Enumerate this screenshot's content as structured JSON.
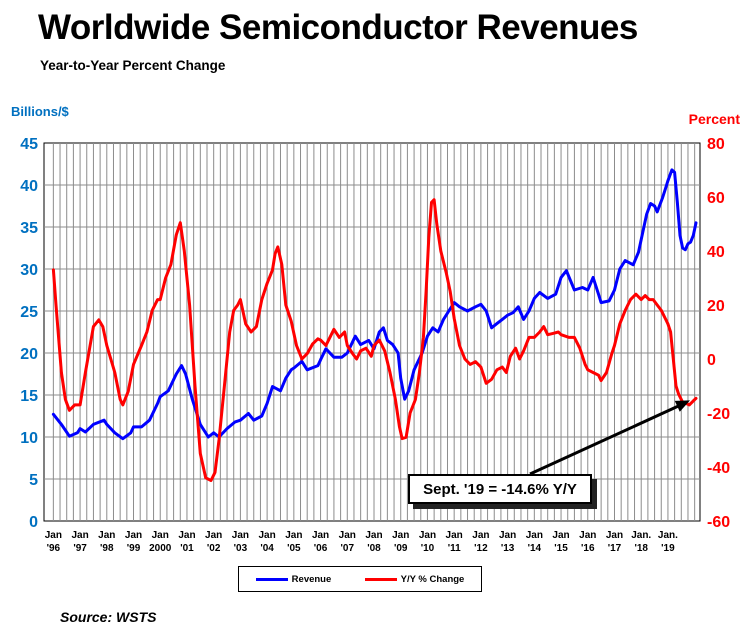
{
  "title": "Worldwide Semiconductor Revenues",
  "subtitle": "Year-to-Year Percent Change",
  "source": "Source: WSTS",
  "colors": {
    "revenue": "#0000ff",
    "yoy": "#ff0000",
    "left_axis": "#0070c0",
    "right_axis": "#ff0000",
    "grid": "#8c8c8c"
  },
  "legend": {
    "revenue": "Revenue",
    "yoy": "Y/Y % Change"
  },
  "callout": "Sept. '19 = -14.6% Y/Y",
  "chart_data": {
    "type": "line",
    "left_axis": {
      "label": "Billions/$",
      "ylim": [
        0,
        45
      ],
      "ticks": [
        0,
        5,
        10,
        15,
        20,
        25,
        30,
        35,
        40,
        45
      ]
    },
    "right_axis": {
      "label": "Percent",
      "ylim": [
        -60,
        80
      ],
      "ticks": [
        -60,
        -40,
        -20,
        0,
        20,
        40,
        60,
        80
      ]
    },
    "x_ticks": [
      [
        "Jan",
        "'96"
      ],
      [
        "Jan",
        "'97"
      ],
      [
        "Jan",
        "'98"
      ],
      [
        "Jan",
        "'99"
      ],
      [
        "Jan",
        "2000"
      ],
      [
        "Jan",
        "'01"
      ],
      [
        "Jan",
        "'02"
      ],
      [
        "Jan",
        "'03"
      ],
      [
        "Jan",
        "'04"
      ],
      [
        "Jan",
        "'05"
      ],
      [
        "Jan",
        "'06"
      ],
      [
        "Jan",
        "'07"
      ],
      [
        "Jan",
        "'08"
      ],
      [
        "Jan",
        "'09"
      ],
      [
        "Jan",
        "'10"
      ],
      [
        "Jan",
        "'11"
      ],
      [
        "Jan",
        "'12"
      ],
      [
        "Jan",
        "'13"
      ],
      [
        "Jan",
        "'14"
      ],
      [
        "Jan",
        "'15"
      ],
      [
        "Jan",
        "'16"
      ],
      [
        "Jan",
        "'17"
      ],
      [
        "Jan.",
        "'18"
      ],
      [
        "Jan.",
        "'19"
      ]
    ],
    "grid": true,
    "legend_position": "bottom",
    "series": [
      {
        "name": "Revenue",
        "axis": "left",
        "points": [
          [
            1996.0,
            12.7
          ],
          [
            1996.3,
            11.5
          ],
          [
            1996.6,
            10.1
          ],
          [
            1996.9,
            10.5
          ],
          [
            1997.0,
            11.0
          ],
          [
            1997.2,
            10.6
          ],
          [
            1997.5,
            11.5
          ],
          [
            1997.9,
            12.0
          ],
          [
            1998.0,
            11.5
          ],
          [
            1998.3,
            10.5
          ],
          [
            1998.6,
            9.8
          ],
          [
            1998.9,
            10.5
          ],
          [
            1999.0,
            11.2
          ],
          [
            1999.3,
            11.2
          ],
          [
            1999.6,
            12.0
          ],
          [
            1999.9,
            14.0
          ],
          [
            2000.0,
            14.8
          ],
          [
            2000.3,
            15.5
          ],
          [
            2000.6,
            17.5
          ],
          [
            2000.8,
            18.5
          ],
          [
            2000.95,
            17.5
          ],
          [
            2001.2,
            14.5
          ],
          [
            2001.5,
            11.5
          ],
          [
            2001.8,
            10.0
          ],
          [
            2002.0,
            10.5
          ],
          [
            2002.2,
            10.0
          ],
          [
            2002.5,
            11.0
          ],
          [
            2002.8,
            11.8
          ],
          [
            2003.0,
            12.0
          ],
          [
            2003.3,
            12.8
          ],
          [
            2003.5,
            12.0
          ],
          [
            2003.8,
            12.5
          ],
          [
            2004.0,
            14.0
          ],
          [
            2004.2,
            16.0
          ],
          [
            2004.5,
            15.5
          ],
          [
            2004.7,
            17.0
          ],
          [
            2004.9,
            18.0
          ],
          [
            2005.0,
            18.2
          ],
          [
            2005.3,
            19.0
          ],
          [
            2005.5,
            18.0
          ],
          [
            2005.9,
            18.5
          ],
          [
            2006.0,
            19.2
          ],
          [
            2006.2,
            20.5
          ],
          [
            2006.5,
            19.5
          ],
          [
            2006.8,
            19.5
          ],
          [
            2007.0,
            20.0
          ],
          [
            2007.3,
            22.0
          ],
          [
            2007.5,
            21.0
          ],
          [
            2007.8,
            21.5
          ],
          [
            2008.0,
            20.5
          ],
          [
            2008.2,
            22.5
          ],
          [
            2008.35,
            23.0
          ],
          [
            2008.5,
            21.5
          ],
          [
            2008.7,
            21.0
          ],
          [
            2008.9,
            20.0
          ],
          [
            2009.0,
            17.0
          ],
          [
            2009.15,
            14.5
          ],
          [
            2009.3,
            15.5
          ],
          [
            2009.5,
            18.0
          ],
          [
            2009.8,
            20.0
          ],
          [
            2010.0,
            22.0
          ],
          [
            2010.2,
            23.0
          ],
          [
            2010.4,
            22.5
          ],
          [
            2010.6,
            24.0
          ],
          [
            2010.8,
            25.0
          ],
          [
            2011.0,
            26.0
          ],
          [
            2011.2,
            25.5
          ],
          [
            2011.5,
            25.0
          ],
          [
            2011.8,
            25.5
          ],
          [
            2012.0,
            25.8
          ],
          [
            2012.2,
            25.0
          ],
          [
            2012.4,
            23.0
          ],
          [
            2012.6,
            23.5
          ],
          [
            2012.8,
            24.0
          ],
          [
            2013.0,
            24.5
          ],
          [
            2013.2,
            24.8
          ],
          [
            2013.4,
            25.5
          ],
          [
            2013.6,
            24.0
          ],
          [
            2013.8,
            25.0
          ],
          [
            2014.0,
            26.5
          ],
          [
            2014.2,
            27.2
          ],
          [
            2014.5,
            26.5
          ],
          [
            2014.8,
            27.0
          ],
          [
            2015.0,
            29.0
          ],
          [
            2015.2,
            29.8
          ],
          [
            2015.5,
            27.5
          ],
          [
            2015.8,
            27.8
          ],
          [
            2016.0,
            27.5
          ],
          [
            2016.2,
            29.0
          ],
          [
            2016.4,
            27.0
          ],
          [
            2016.5,
            26.0
          ],
          [
            2016.8,
            26.2
          ],
          [
            2017.0,
            27.5
          ],
          [
            2017.2,
            30.0
          ],
          [
            2017.4,
            31.0
          ],
          [
            2017.7,
            30.5
          ],
          [
            2017.9,
            32.0
          ],
          [
            2018.0,
            33.5
          ],
          [
            2018.2,
            36.5
          ],
          [
            2018.35,
            37.8
          ],
          [
            2018.5,
            37.5
          ],
          [
            2018.6,
            36.8
          ],
          [
            2018.8,
            38.5
          ],
          [
            2018.9,
            39.5
          ],
          [
            2019.0,
            40.5
          ],
          [
            2019.15,
            41.8
          ],
          [
            2019.25,
            41.5
          ],
          [
            2019.35,
            38.0
          ],
          [
            2019.45,
            34.0
          ],
          [
            2019.55,
            32.5
          ],
          [
            2019.65,
            32.3
          ],
          [
            2019.75,
            33.0
          ],
          [
            2019.85,
            33.2
          ],
          [
            2019.95,
            34.0
          ],
          [
            2020.05,
            35.5
          ]
        ]
      },
      {
        "name": "Y/Y % Change",
        "axis": "right",
        "points": [
          [
            1996.0,
            33.0
          ],
          [
            1996.1,
            20.0
          ],
          [
            1996.3,
            -5.0
          ],
          [
            1996.45,
            -15.0
          ],
          [
            1996.6,
            -19.0
          ],
          [
            1996.8,
            -17.0
          ],
          [
            1997.0,
            -17.0
          ],
          [
            1997.2,
            -5.0
          ],
          [
            1997.5,
            12.0
          ],
          [
            1997.7,
            14.5
          ],
          [
            1997.85,
            12.0
          ],
          [
            1998.0,
            5.0
          ],
          [
            1998.3,
            -5.0
          ],
          [
            1998.5,
            -15.0
          ],
          [
            1998.6,
            -17.0
          ],
          [
            1998.8,
            -12.0
          ],
          [
            1999.0,
            -2.0
          ],
          [
            1999.3,
            5.0
          ],
          [
            1999.5,
            10.0
          ],
          [
            1999.7,
            18.0
          ],
          [
            1999.9,
            22.0
          ],
          [
            2000.0,
            22.0
          ],
          [
            2000.2,
            30.0
          ],
          [
            2000.4,
            35.0
          ],
          [
            2000.6,
            46.0
          ],
          [
            2000.75,
            50.5
          ],
          [
            2000.9,
            40.0
          ],
          [
            2001.1,
            20.0
          ],
          [
            2001.3,
            -10.0
          ],
          [
            2001.5,
            -35.0
          ],
          [
            2001.7,
            -44.0
          ],
          [
            2001.9,
            -45.0
          ],
          [
            2002.05,
            -42.0
          ],
          [
            2002.2,
            -30.0
          ],
          [
            2002.4,
            -10.0
          ],
          [
            2002.6,
            10.0
          ],
          [
            2002.75,
            18.0
          ],
          [
            2002.9,
            20.0
          ],
          [
            2003.0,
            22.0
          ],
          [
            2003.2,
            13.0
          ],
          [
            2003.4,
            10.0
          ],
          [
            2003.6,
            12.0
          ],
          [
            2003.8,
            22.0
          ],
          [
            2004.0,
            28.0
          ],
          [
            2004.2,
            33.0
          ],
          [
            2004.3,
            39.0
          ],
          [
            2004.4,
            41.5
          ],
          [
            2004.55,
            35.0
          ],
          [
            2004.7,
            20.0
          ],
          [
            2004.9,
            14.0
          ],
          [
            2005.1,
            5.0
          ],
          [
            2005.3,
            0.0
          ],
          [
            2005.5,
            2.0
          ],
          [
            2005.7,
            5.5
          ],
          [
            2005.9,
            7.5
          ],
          [
            2006.0,
            7.0
          ],
          [
            2006.2,
            5.0
          ],
          [
            2006.35,
            8.0
          ],
          [
            2006.5,
            11.0
          ],
          [
            2006.7,
            8.0
          ],
          [
            2006.9,
            10.0
          ],
          [
            2007.0,
            5.0
          ],
          [
            2007.2,
            2.0
          ],
          [
            2007.35,
            0.0
          ],
          [
            2007.5,
            3.0
          ],
          [
            2007.7,
            4.0
          ],
          [
            2007.9,
            1.0
          ],
          [
            2008.0,
            5.0
          ],
          [
            2008.2,
            7.0
          ],
          [
            2008.4,
            3.0
          ],
          [
            2008.6,
            -5.0
          ],
          [
            2008.8,
            -15.0
          ],
          [
            2008.95,
            -25.0
          ],
          [
            2009.05,
            -29.5
          ],
          [
            2009.2,
            -29.0
          ],
          [
            2009.35,
            -20.0
          ],
          [
            2009.55,
            -15.0
          ],
          [
            2009.7,
            -5.0
          ],
          [
            2009.85,
            8.0
          ],
          [
            2009.95,
            25.0
          ],
          [
            2010.05,
            45.0
          ],
          [
            2010.15,
            58.0
          ],
          [
            2010.25,
            59.0
          ],
          [
            2010.35,
            50.0
          ],
          [
            2010.5,
            40.0
          ],
          [
            2010.7,
            32.0
          ],
          [
            2010.85,
            25.0
          ],
          [
            2011.0,
            15.0
          ],
          [
            2011.2,
            5.0
          ],
          [
            2011.4,
            0.0
          ],
          [
            2011.6,
            -2.0
          ],
          [
            2011.8,
            -1.0
          ],
          [
            2012.0,
            -3.0
          ],
          [
            2012.2,
            -9.0
          ],
          [
            2012.4,
            -7.5
          ],
          [
            2012.6,
            -4.0
          ],
          [
            2012.8,
            -3.0
          ],
          [
            2012.95,
            -5.0
          ],
          [
            2013.1,
            1.0
          ],
          [
            2013.3,
            4.0
          ],
          [
            2013.45,
            0.0
          ],
          [
            2013.6,
            3.0
          ],
          [
            2013.8,
            8.0
          ],
          [
            2014.0,
            8.0
          ],
          [
            2014.2,
            10.0
          ],
          [
            2014.35,
            12.0
          ],
          [
            2014.5,
            9.0
          ],
          [
            2014.7,
            9.5
          ],
          [
            2014.9,
            10.0
          ],
          [
            2015.0,
            9.0
          ],
          [
            2015.3,
            8.0
          ],
          [
            2015.5,
            8.0
          ],
          [
            2015.7,
            4.0
          ],
          [
            2015.9,
            -2.0
          ],
          [
            2016.0,
            -4.0
          ],
          [
            2016.2,
            -5.0
          ],
          [
            2016.4,
            -6.0
          ],
          [
            2016.5,
            -8.0
          ],
          [
            2016.7,
            -5.0
          ],
          [
            2016.9,
            2.0
          ],
          [
            2017.0,
            5.0
          ],
          [
            2017.2,
            13.0
          ],
          [
            2017.4,
            18.0
          ],
          [
            2017.6,
            22.0
          ],
          [
            2017.8,
            24.0
          ],
          [
            2018.0,
            22.0
          ],
          [
            2018.15,
            23.5
          ],
          [
            2018.3,
            22.0
          ],
          [
            2018.45,
            22.0
          ],
          [
            2018.6,
            20.0
          ],
          [
            2018.75,
            18.0
          ],
          [
            2018.9,
            15.0
          ],
          [
            2019.0,
            13.0
          ],
          [
            2019.1,
            10.0
          ],
          [
            2019.2,
            0.0
          ],
          [
            2019.3,
            -10.0
          ],
          [
            2019.4,
            -13.0
          ],
          [
            2019.55,
            -16.0
          ],
          [
            2019.7,
            -16.5
          ],
          [
            2019.8,
            -17.0
          ],
          [
            2019.95,
            -15.5
          ],
          [
            2020.05,
            -14.6
          ]
        ]
      }
    ]
  }
}
